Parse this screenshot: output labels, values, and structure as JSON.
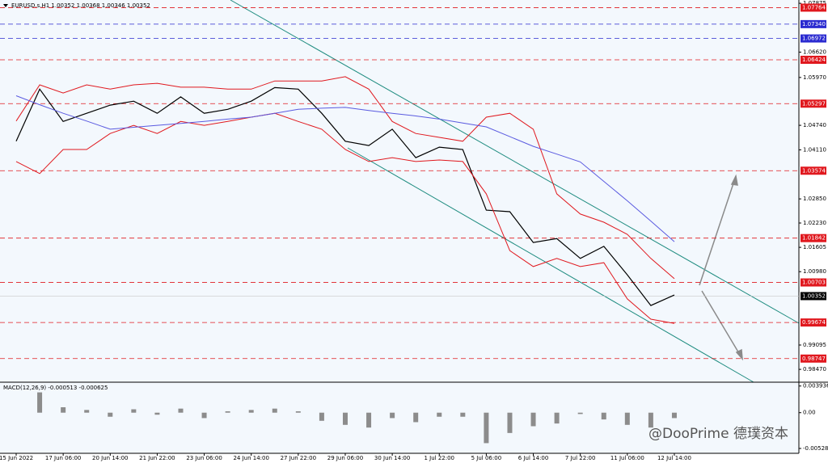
{
  "chart_data": [
    {
      "type": "line",
      "title": "EURUSD.s,H1  1.00352 1.00368 1.00346 1.00352",
      "categories": [
        "15 Jun 2022",
        null,
        "17 Jun 06:00",
        null,
        "20 Jun 14:00",
        null,
        "21 Jun 22:00",
        null,
        "23 Jun 06:00",
        null,
        "24 Jun 14:00",
        null,
        "27 Jun 22:00",
        null,
        "29 Jun 06:00",
        null,
        "30 Jun 14:00",
        null,
        "1 Jul 22:00",
        null,
        "5 Jul 06:00",
        null,
        "6 Jul 14:00",
        null,
        "7 Jul 22:00",
        null,
        "11 Jul 06:00",
        null,
        "12 Jul 14:00"
      ],
      "series": [
        {
          "color": "#000000",
          "values": [
            1.0433,
            1.0567,
            1.0484,
            1.0505,
            1.0526,
            1.0536,
            1.0505,
            1.0547,
            1.0505,
            1.0515,
            1.0536,
            1.0571,
            1.0567,
            1.0505,
            1.0433,
            1.0422,
            1.0464,
            1.0391,
            1.0418,
            1.0412,
            1.0256,
            1.0252,
            1.0173,
            1.0183,
            1.0132,
            1.0163,
            1.009,
            1.0011,
            1.0038
          ]
        },
        {
          "color": "#e0181e",
          "values": [
            1.0485,
            1.0578,
            1.0557,
            1.0578,
            1.0567,
            1.0578,
            1.0582,
            1.0572,
            1.0572,
            1.0567,
            1.0567,
            1.0588,
            1.0588,
            1.0588,
            1.0599,
            1.0567,
            1.0484,
            1.0453,
            1.0443,
            1.0433,
            1.0495,
            1.0505,
            1.0464,
            1.0298,
            1.0246,
            1.0225,
            1.0194,
            1.0132,
            1.008
          ]
        },
        {
          "color": "#e0181e",
          "values": [
            1.0381,
            1.035,
            1.0412,
            1.0412,
            1.0453,
            1.0474,
            1.0453,
            1.0484,
            1.0474,
            1.0484,
            1.0495,
            1.0505,
            1.0484,
            1.0464,
            1.0412,
            1.0381,
            1.0391,
            1.0381,
            1.0385,
            1.0381,
            1.0298,
            1.0152,
            1.0111,
            1.0132,
            1.0111,
            1.0121,
            1.0028,
            0.9976,
            0.9965
          ]
        },
        {
          "color": "#5a5ae0",
          "values": [
            1.055,
            1.0527,
            1.0505,
            1.0485,
            1.0464,
            1.0469,
            1.0474,
            1.0479,
            1.0484,
            1.049,
            1.0495,
            1.0505,
            1.0515,
            1.0518,
            1.052,
            1.0512,
            1.0505,
            1.0498,
            1.049,
            1.048,
            1.047,
            1.0445,
            1.042,
            1.04,
            1.038,
            1.033,
            1.028,
            1.0228,
            1.0175
          ]
        }
      ],
      "ylim": [
        0.9814,
        1.0796
      ],
      "yticks": [
        1.07875,
        {
          "value": 1.0662,
          "label": "1.06620"
        },
        {
          "value": 1.0597,
          "label": "1.05970"
        },
        {
          "value": 1.0474,
          "label": "1.04740"
        },
        {
          "value": 1.0411,
          "label": "1.04110"
        },
        {
          "value": 1.0285,
          "label": "1.02850"
        },
        {
          "value": 1.0223,
          "label": "1.02230"
        },
        1.01605,
        {
          "value": 1.0098,
          "label": "1.00980"
        },
        0.99095,
        {
          "value": 0.9847,
          "label": "0.98470"
        }
      ],
      "levels": [
        {
          "value": 1.07764,
          "label": "1.07764",
          "color": "#e0181e"
        },
        {
          "value": 1.0734,
          "label": "1.07340",
          "color": "#2a2ad0"
        },
        {
          "value": 1.06972,
          "label": "1.06972",
          "color": "#2a2ad0"
        },
        {
          "value": 1.06424,
          "label": "1.06424",
          "color": "#e0181e"
        },
        {
          "value": 1.05297,
          "label": "1.05297",
          "color": "#e0181e"
        },
        {
          "value": 1.03574,
          "label": "1.03574",
          "color": "#e0181e"
        },
        {
          "value": 1.01842,
          "label": "1.01842",
          "color": "#e0181e"
        },
        {
          "value": 1.00703,
          "label": "1.00703",
          "color": "#e0181e"
        },
        {
          "value": 0.99674,
          "label": "0.99674",
          "color": "#e0181e"
        },
        {
          "value": 0.98747,
          "label": "0.98747",
          "color": "#e0181e"
        }
      ],
      "current": {
        "value": 1.00352,
        "label": "1.00352",
        "color": "#000000"
      },
      "watermark": "@DooPrime 德璞资本"
    },
    {
      "type": "bar",
      "title": "MACD(12,26,9) -0.000513 -0.000625",
      "color": "#8c8c8c",
      "values": [
        0.0,
        0.003,
        0.0008,
        0.0004,
        -0.0006,
        0.0005,
        -0.0003,
        0.0006,
        -0.0008,
        0.0002,
        0.0004,
        0.0006,
        0.0002,
        -0.0012,
        -0.0018,
        -0.0022,
        -0.0008,
        -0.0014,
        -0.0006,
        -0.0006,
        -0.0045,
        -0.003,
        -0.002,
        -0.0016,
        -0.0002,
        -0.001,
        -0.0018,
        -0.0022,
        -0.0008
      ],
      "ylim": [
        -0.006,
        0.0045
      ],
      "yticks": [
        0.003936,
        {
          "value": 0,
          "label": "0.00"
        },
        -0.005281
      ]
    }
  ]
}
